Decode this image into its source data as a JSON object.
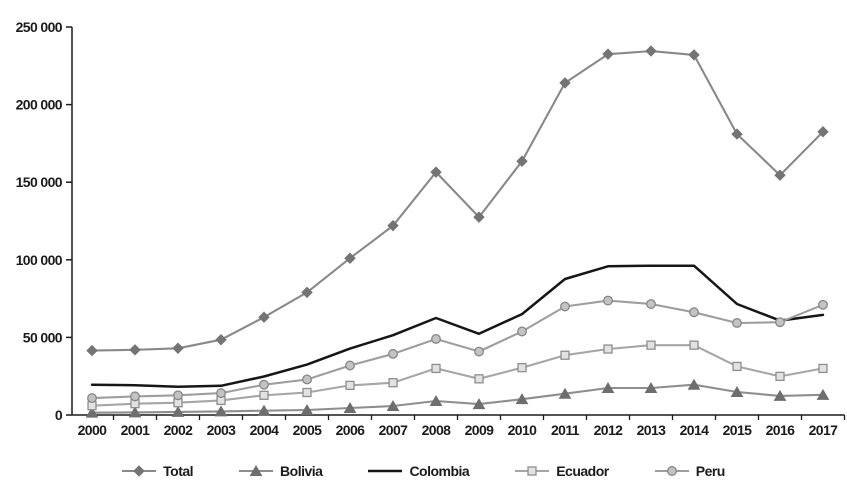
{
  "chart_data": {
    "type": "line",
    "title": "",
    "xlabel": "",
    "ylabel": "",
    "grid": false,
    "legend_position": "bottom",
    "background_color": "#ffffff",
    "axis_color": "#1b1b1b",
    "categories": [
      "2000",
      "2001",
      "2002",
      "2003",
      "2004",
      "2005",
      "2006",
      "2007",
      "2008",
      "2009",
      "2010",
      "2011",
      "2012",
      "2013",
      "2014",
      "2015",
      "2016",
      "2017"
    ],
    "y_axis": {
      "min": 0,
      "max": 250000,
      "tick_step": 50000,
      "tick_labels": [
        "0",
        "50 000",
        "100 000",
        "150 000",
        "200 000",
        "250 000"
      ]
    },
    "series": [
      {
        "name": "Total",
        "marker": "diamond",
        "line_color": "#898989",
        "marker_fill": "#747474",
        "marker_stroke": "#747474",
        "values": [
          41500,
          42000,
          43000,
          48500,
          63000,
          79000,
          101000,
          122000,
          156500,
          127500,
          163500,
          214000,
          232500,
          234500,
          232000,
          181000,
          154500,
          182500
        ]
      },
      {
        "name": "Bolivia",
        "marker": "triangle",
        "line_color": "#8e8e8e",
        "marker_fill": "#6e6e6e",
        "marker_stroke": "#6e6e6e",
        "values": [
          1500,
          1700,
          2000,
          2300,
          2800,
          3200,
          4500,
          5800,
          9000,
          7000,
          10200,
          13700,
          17400,
          17400,
          19500,
          14800,
          12300,
          13000
        ]
      },
      {
        "name": "Colombia",
        "marker": "none",
        "line_color": "#161616",
        "marker_fill": "#161616",
        "marker_stroke": "#161616",
        "values": [
          19500,
          19200,
          18200,
          18800,
          24800,
          32500,
          42800,
          51400,
          62500,
          52300,
          65000,
          87600,
          95800,
          96200,
          96200,
          71500,
          60800,
          64500
        ]
      },
      {
        "name": "Ecuador",
        "marker": "square",
        "line_color": "#a6a6a6",
        "marker_fill": "#e2e2e2",
        "marker_stroke": "#8e8e8e",
        "values": [
          6000,
          7300,
          7900,
          9400,
          12700,
          14500,
          19100,
          20800,
          30000,
          23300,
          30500,
          38500,
          42500,
          45000,
          45000,
          31300,
          24900,
          30000
        ]
      },
      {
        "name": "Peru",
        "marker": "circle",
        "line_color": "#9e9e9e",
        "marker_fill": "#c3c3c3",
        "marker_stroke": "#878787",
        "values": [
          10900,
          12000,
          12700,
          14100,
          19500,
          22900,
          31900,
          39400,
          49000,
          40900,
          53800,
          69900,
          73700,
          71500,
          66200,
          59300,
          59800,
          71000
        ]
      }
    ]
  }
}
